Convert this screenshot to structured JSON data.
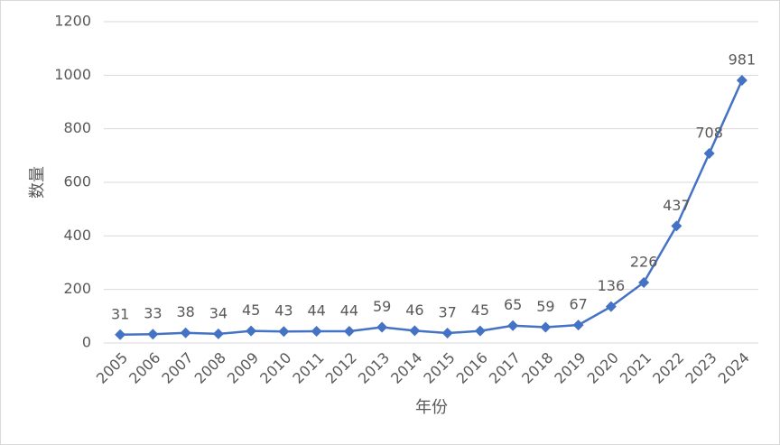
{
  "chart_data": {
    "type": "line",
    "x_label": "年份",
    "y_label": "数量",
    "categories": [
      "2005",
      "2006",
      "2007",
      "2008",
      "2009",
      "2010",
      "2011",
      "2012",
      "2013",
      "2014",
      "2015",
      "2016",
      "2017",
      "2018",
      "2019",
      "2020",
      "2021",
      "2022",
      "2023",
      "2024"
    ],
    "values": [
      31,
      33,
      38,
      34,
      45,
      43,
      44,
      44,
      59,
      46,
      37,
      45,
      65,
      59,
      67,
      136,
      226,
      437,
      708,
      981
    ],
    "color": "#4472c4",
    "ylim": [
      0,
      1200
    ],
    "yticks": [
      0,
      200,
      400,
      600,
      800,
      1000,
      1200
    ],
    "grid": true
  }
}
